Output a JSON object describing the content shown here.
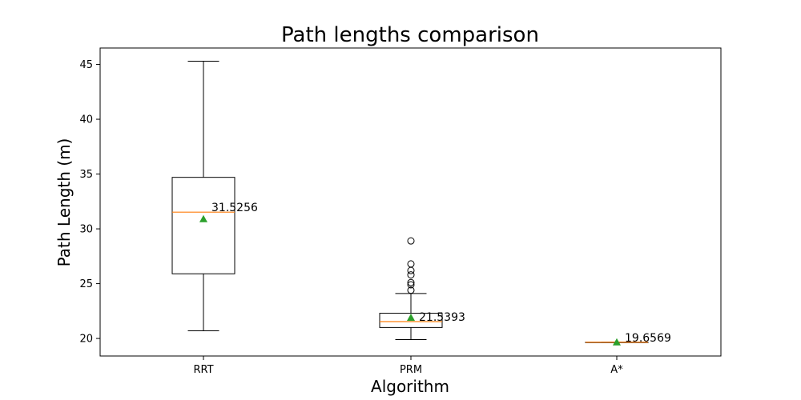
{
  "chart_data": {
    "type": "boxplot",
    "title": "Path lengths comparison",
    "xlabel": "Algorithm",
    "ylabel": "Path Length (m)",
    "categories": [
      "RRT",
      "PRM",
      "A*"
    ],
    "ylim": [
      18.4,
      46.5
    ],
    "yticks": [
      20,
      25,
      30,
      35,
      40,
      45
    ],
    "grid": false,
    "boxes": [
      {
        "label": "RRT",
        "whisker_low": 20.7,
        "q1": 25.9,
        "median": 31.5256,
        "q3": 34.7,
        "whisker_high": 45.3,
        "mean": 30.9,
        "outliers": [],
        "annotation": "31.5256"
      },
      {
        "label": "PRM",
        "whisker_low": 19.9,
        "q1": 21.0,
        "median": 21.5393,
        "q3": 22.3,
        "whisker_high": 24.1,
        "mean": 21.9,
        "outliers": [
          24.4,
          24.9,
          25.1,
          25.8,
          26.2,
          26.8,
          28.9
        ],
        "annotation": "21.5393"
      },
      {
        "label": "A*",
        "whisker_low": 19.6569,
        "q1": 19.6569,
        "median": 19.6569,
        "q3": 19.6569,
        "whisker_high": 19.6569,
        "mean": 19.6569,
        "outliers": [],
        "annotation": "19.6569"
      }
    ],
    "colors": {
      "box": "#000000",
      "median": "#ff7f0e",
      "mean": "#2ca02c",
      "outlier": "#000000"
    }
  }
}
